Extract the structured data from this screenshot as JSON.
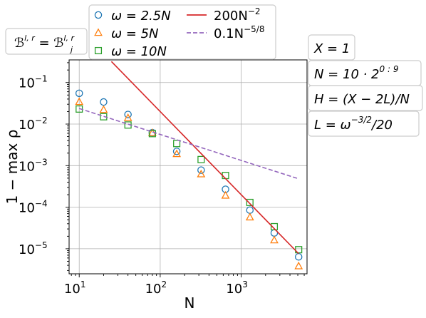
{
  "chart_data": {
    "type": "scatter",
    "xscale": "log",
    "yscale": "log",
    "xlim": [
      7.5,
      6500
    ],
    "ylim": [
      2.5e-06,
      0.35
    ],
    "xlabel": "N",
    "ylabel": "1 − max ρ",
    "grid": true,
    "x_ticks": [
      {
        "value": 10,
        "base": "10",
        "exp": "1"
      },
      {
        "value": 100,
        "base": "10",
        "exp": "2"
      },
      {
        "value": 1000,
        "base": "10",
        "exp": "3"
      }
    ],
    "y_ticks": [
      {
        "value": 0.1,
        "base": "10",
        "exp": "−1"
      },
      {
        "value": 0.01,
        "base": "10",
        "exp": "−2"
      },
      {
        "value": 0.001,
        "base": "10",
        "exp": "−3"
      },
      {
        "value": 0.0001,
        "base": "10",
        "exp": "−4"
      },
      {
        "value": 1e-05,
        "base": "10",
        "exp": "−5"
      }
    ],
    "series": [
      {
        "name": "ω = 2.5N",
        "marker": "circle",
        "color": "#1f77b4",
        "x": [
          10,
          20,
          40,
          80,
          160,
          320,
          640,
          1280,
          2560,
          5120
        ],
        "y": [
          0.055,
          0.034,
          0.017,
          0.0062,
          0.0022,
          0.00078,
          0.00027,
          8.5e-05,
          2.4e-05,
          6.4e-06
        ]
      },
      {
        "name": "ω = 5N",
        "marker": "triangle",
        "color": "#ff7f0e",
        "x": [
          10,
          20,
          40,
          80,
          160,
          320,
          640,
          1280,
          2560,
          5120
        ],
        "y": [
          0.034,
          0.022,
          0.014,
          0.0061,
          0.0019,
          0.00062,
          0.00019,
          5.7e-05,
          1.6e-05,
          3.8e-06
        ]
      },
      {
        "name": "ω = 10N",
        "marker": "square",
        "color": "#2ca02c",
        "x": [
          10,
          20,
          40,
          80,
          160,
          320,
          640,
          1280,
          2560,
          5120
        ],
        "y": [
          0.023,
          0.015,
          0.0095,
          0.0059,
          0.0034,
          0.0014,
          0.00058,
          0.00013,
          3.4e-05,
          9.5e-06
        ]
      },
      {
        "name": "200N⁻²",
        "type": "line",
        "color": "#d62728",
        "dash": "solid",
        "x": [
          25,
          5120
        ],
        "y": [
          0.32,
          7.63e-06
        ]
      },
      {
        "name": "0.1N⁻⁵ᐟ⁸",
        "type": "line",
        "color": "#9467bd",
        "dash": "dashed",
        "x": [
          10,
          5120
        ],
        "y": [
          0.0237,
          0.000482
        ]
      }
    ],
    "legend": {
      "placement": "top",
      "entries": [
        {
          "series": 0,
          "text": "ω = 2.5N"
        },
        {
          "series": 3,
          "text": "200N",
          "sup": "−2"
        },
        {
          "series": 1,
          "text": "ω = 5N"
        },
        {
          "series": 4,
          "text": "0.1N",
          "sup": "−5/8"
        },
        {
          "series": 2,
          "text": "ω = 10N"
        }
      ]
    },
    "annotations": {
      "top_left": {
        "lhs": "ℬ",
        "lhs_sup": "l, r",
        "eq": " = ",
        "rhs": "ℬ",
        "rhs_sup": "l, r",
        "rhs_sub": "j"
      },
      "right": [
        {
          "text": "X = 1"
        },
        {
          "text": "N = 10 · 2",
          "sup": "0 : 9"
        },
        {
          "text": "H = (X − 2L)/N"
        },
        {
          "text": "L = ω",
          "sup": "−3/2",
          "after": "/20"
        }
      ]
    }
  }
}
